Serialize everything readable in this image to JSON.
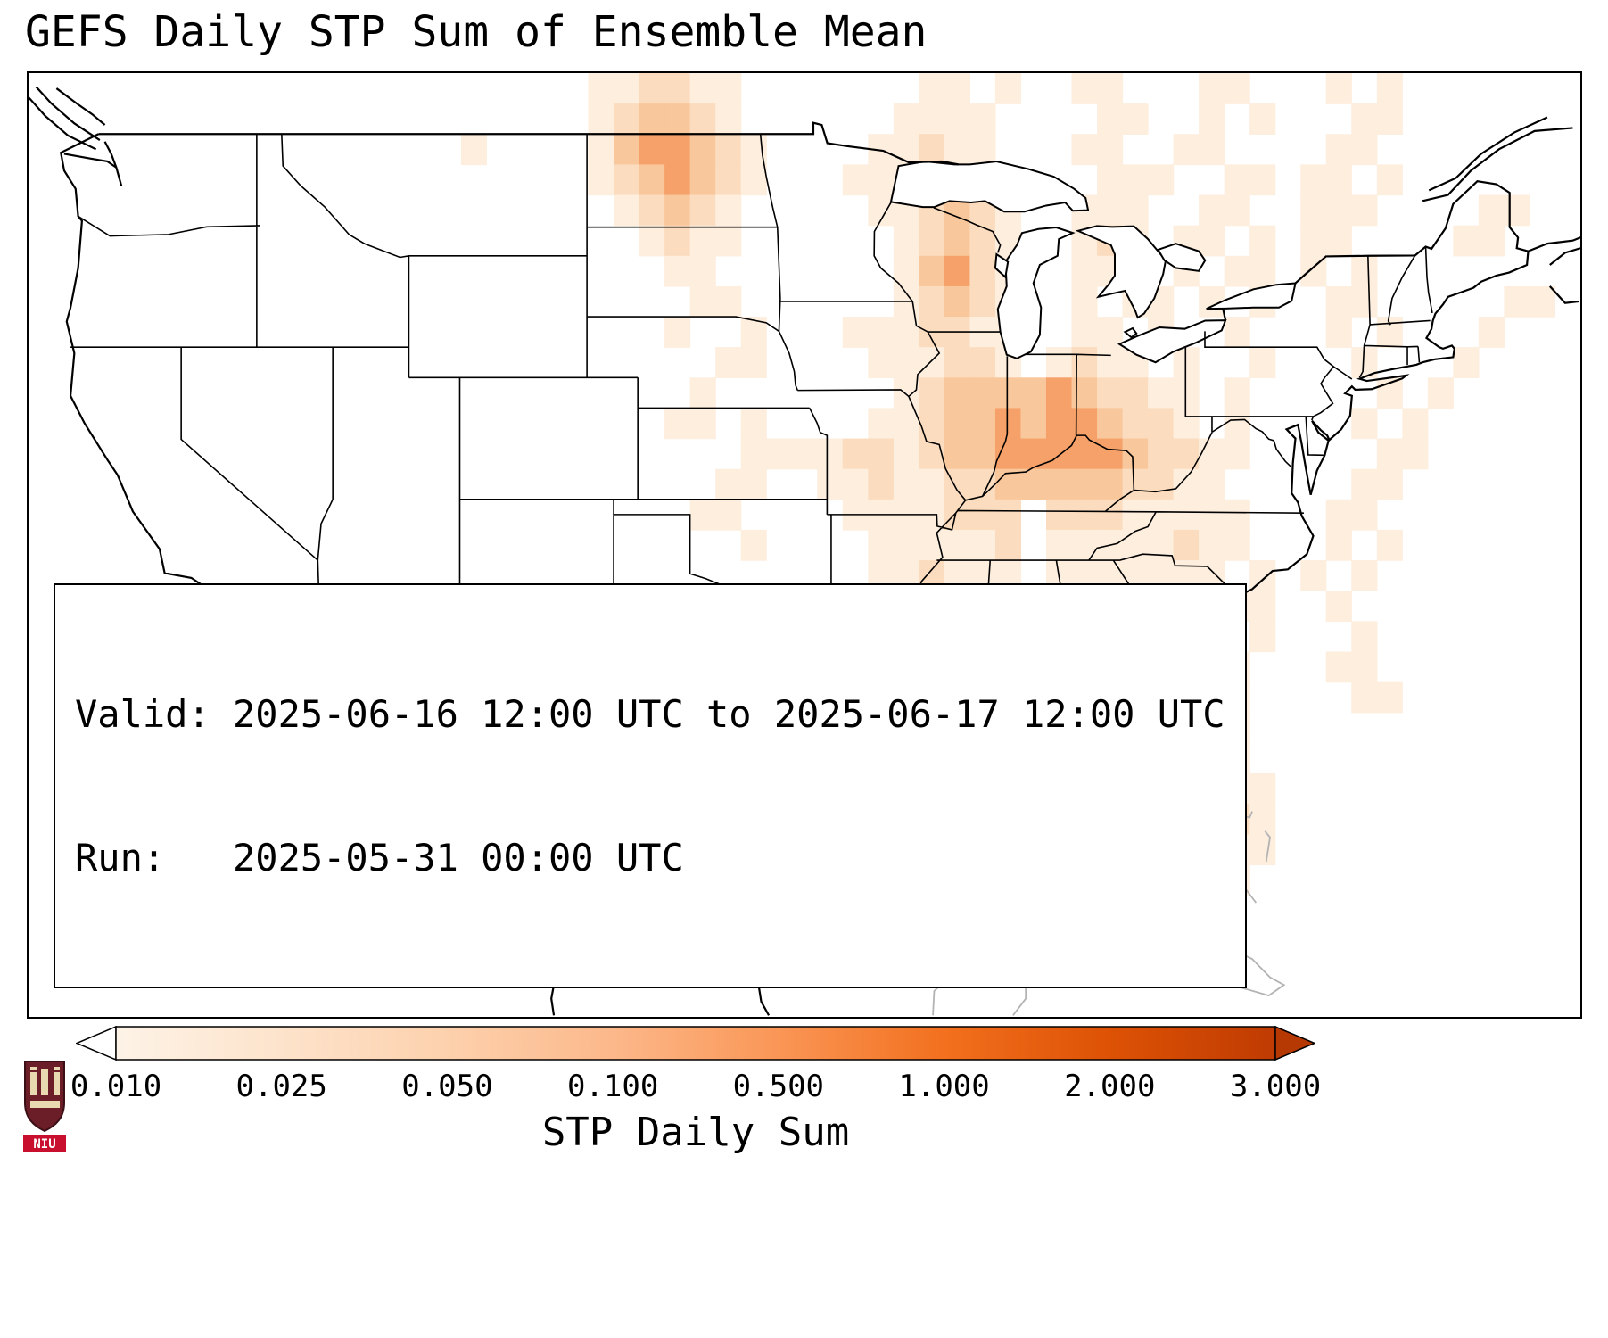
{
  "title": "GEFS Daily STP Sum of Ensemble Mean",
  "info_box": {
    "valid_line": "Valid: 2025-06-16 12:00 UTC to 2025-06-17 12:00 UTC",
    "run_line": "Run:   2025-05-31 00:00 UTC"
  },
  "colorbar": {
    "label": "STP Daily Sum",
    "ticks": [
      "0.010",
      "0.025",
      "0.050",
      "0.100",
      "0.500",
      "1.000",
      "2.000",
      "3.000"
    ],
    "gradient": [
      "#fdf3e7",
      "#fde3cb",
      "#fdd1ad",
      "#fcb88a",
      "#fa9656",
      "#f2701e",
      "#dd5205",
      "#bf3b02"
    ],
    "arrow_left_color": "#ffffff",
    "arrow_right_color": "#b63802"
  },
  "logo": {
    "text": "NIU",
    "shield_color": "#6b1d28",
    "band_color": "#c8102e"
  },
  "chart_data": {
    "type": "heatmap",
    "title": "GEFS Daily STP Sum of Ensemble Mean",
    "colorbar_label": "STP Daily Sum",
    "colorbar_ticks": [
      0.01,
      0.025,
      0.05,
      0.1,
      0.5,
      1.0,
      2.0,
      3.0
    ],
    "valid": "2025-06-16 12:00 UTC to 2025-06-17 12:00 UTC",
    "run": "2025-05-31 00:00 UTC",
    "grid": {
      "lon_min": -126,
      "lon_max": -65,
      "lat_min": 20,
      "lat_max": 51,
      "cell_deg": 1,
      "level_values": [
        0,
        0.025,
        0.05,
        0.1,
        0.5,
        1.0
      ],
      "level_colors": [
        "none",
        "#fdeede",
        "#fbdcbe",
        "#f9c79c",
        "#f5a169",
        "#ee8444"
      ],
      "rows": [
        "0000000000000000000000112211000000011010011000110001010000000",
        "0000000000000000000000123321000000111100001100101000110000000",
        "0000000000000000010000134432100001121100011001100001100000000",
        "0000000000000000000000123432100011121000001110011011010000000",
        "0000000000000000000000012321000001123210011100110011100001100",
        "0000000000000000000000001211000000123210012101101011000011000",
        "0000000000000000000000000110000000134210011001011010100000000",
        "0000000000000000000000000011000000123210010110101001100000110",
        "0000000000000000000000000100100011122110011010010001010001000",
        "0000000000000000000000000001100001112210121101001000100010000",
        "0000000000000000000000000010000000123333432211010000010100000",
        "0000000000000000000000000110100001123343443221010000101000000",
        "0000000000000000000000000000111122123344444322110000011000000",
        "0000000000000000000000000001100112112233333221100000110000000",
        "0000000000000000000000000011000011112220222111110001100000000",
        "0000000000000000000000000000100001111120111112110001010000000",
        "0000000000000000000000000000000001121110111111101010100000000",
        "0000000000000000000000000000000011111110011111011001000000000",
        "0000000000000000000000000000000001111100111101101000100000000",
        "0000000000000000000000000000000011121000011112110001100000000",
        "0000000000000000000000000000000012232100001112110000110000000",
        "0000000000000000000000000000000012321100000112210000000000000",
        "0000000000000000000000000000000011221000000012310000000000000",
        "0000000000000000000000000000000001111000000012311000000000000",
        "0000000000000000000000000000000000110000000011221000000000000",
        "0000000000000000000000000000000000011000000001111000000000000",
        "0000000000000000000000000000000000000000000000110000000000000",
        "0000000000000000000000000000000000000000000001000000000000000",
        "0000000000000000000000000000000000000000000000000000000000000",
        "0000000000000000000000000000000000000000000000000000000000000",
        "0000000000000000000000000000000000000000000000000000000000000"
      ]
    }
  }
}
